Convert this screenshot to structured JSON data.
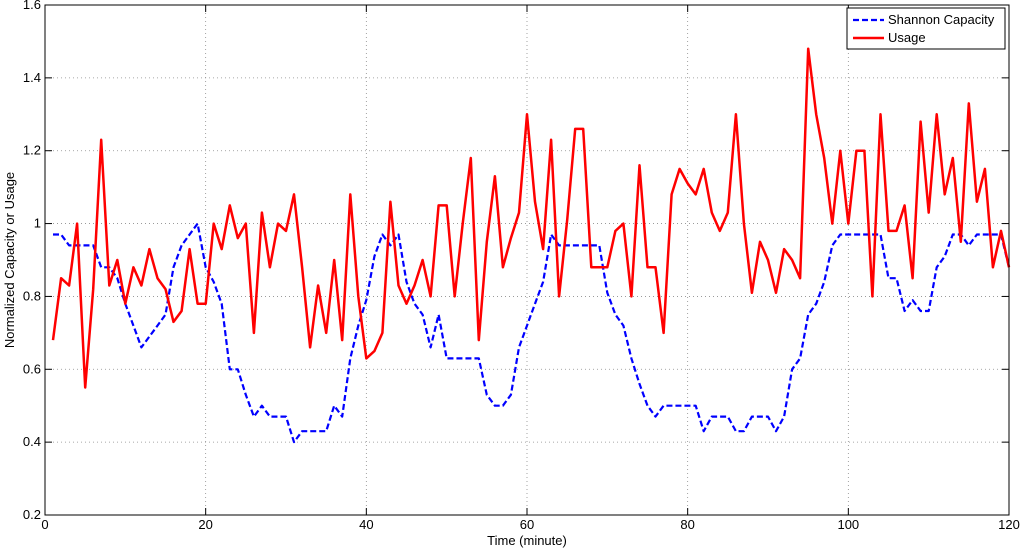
{
  "chart_data": {
    "type": "line",
    "title": "",
    "xlabel": "Time (minute)",
    "ylabel": "Normalized Capacity or Usage",
    "xlim": [
      0,
      120
    ],
    "ylim": [
      0.2,
      1.6
    ],
    "xticks": [
      0,
      20,
      40,
      60,
      80,
      100,
      120
    ],
    "yticks": [
      0.2,
      0.4,
      0.6,
      0.8,
      1,
      1.2,
      1.4,
      1.6
    ],
    "xtick_labels": [
      "0",
      "20",
      "40",
      "60",
      "80",
      "100",
      "120"
    ],
    "ytick_labels": [
      "0.2",
      "0.4",
      "0.6",
      "0.8",
      "1",
      "1.2",
      "1.4",
      "1.6"
    ],
    "grid": true,
    "legend_position": "top-right",
    "series": [
      {
        "name": "Shannon Capacity",
        "color": "#0000ff",
        "style": "dashed",
        "x": [
          1,
          2,
          3,
          4,
          5,
          6,
          7,
          8,
          9,
          10,
          11,
          12,
          13,
          14,
          15,
          16,
          17,
          18,
          19,
          20,
          21,
          22,
          23,
          24,
          25,
          26,
          27,
          28,
          29,
          30,
          31,
          32,
          33,
          34,
          35,
          36,
          37,
          38,
          39,
          40,
          41,
          42,
          43,
          44,
          45,
          46,
          47,
          48,
          49,
          50,
          51,
          52,
          53,
          54,
          55,
          56,
          57,
          58,
          59,
          60,
          61,
          62,
          63,
          64,
          65,
          66,
          67,
          68,
          69,
          70,
          71,
          72,
          73,
          74,
          75,
          76,
          77,
          78,
          79,
          80,
          81,
          82,
          83,
          84,
          85,
          86,
          87,
          88,
          89,
          90,
          91,
          92,
          93,
          94,
          95,
          96,
          97,
          98,
          99,
          100,
          101,
          102,
          103,
          104,
          105,
          106,
          107,
          108,
          109,
          110,
          111,
          112,
          113,
          114,
          115,
          116,
          117,
          118,
          119,
          120
        ],
        "y": [
          0.97,
          0.97,
          0.94,
          0.94,
          0.94,
          0.94,
          0.88,
          0.88,
          0.85,
          0.78,
          0.72,
          0.66,
          0.69,
          0.72,
          0.75,
          0.88,
          0.94,
          0.97,
          1.0,
          0.88,
          0.84,
          0.78,
          0.6,
          0.6,
          0.53,
          0.47,
          0.5,
          0.47,
          0.47,
          0.47,
          0.4,
          0.43,
          0.43,
          0.43,
          0.43,
          0.5,
          0.47,
          0.63,
          0.72,
          0.79,
          0.91,
          0.97,
          0.94,
          0.97,
          0.84,
          0.78,
          0.75,
          0.66,
          0.75,
          0.63,
          0.63,
          0.63,
          0.63,
          0.63,
          0.53,
          0.5,
          0.5,
          0.53,
          0.66,
          0.72,
          0.78,
          0.84,
          0.97,
          0.94,
          0.94,
          0.94,
          0.94,
          0.94,
          0.94,
          0.81,
          0.75,
          0.72,
          0.63,
          0.56,
          0.5,
          0.47,
          0.5,
          0.5,
          0.5,
          0.5,
          0.5,
          0.43,
          0.47,
          0.47,
          0.47,
          0.43,
          0.43,
          0.47,
          0.47,
          0.47,
          0.43,
          0.47,
          0.6,
          0.63,
          0.75,
          0.78,
          0.84,
          0.94,
          0.97,
          0.97,
          0.97,
          0.97,
          0.97,
          0.97,
          0.85,
          0.85,
          0.76,
          0.79,
          0.76,
          0.76,
          0.88,
          0.91,
          0.97,
          0.97,
          0.94,
          0.97,
          0.97,
          0.97,
          0.97,
          0.88
        ]
      },
      {
        "name": "Usage",
        "color": "#ff0000",
        "style": "solid",
        "x": [
          1,
          2,
          3,
          4,
          5,
          6,
          7,
          8,
          9,
          10,
          11,
          12,
          13,
          14,
          15,
          16,
          17,
          18,
          19,
          20,
          21,
          22,
          23,
          24,
          25,
          26,
          27,
          28,
          29,
          30,
          31,
          32,
          33,
          34,
          35,
          36,
          37,
          38,
          39,
          40,
          41,
          42,
          43,
          44,
          45,
          46,
          47,
          48,
          49,
          50,
          51,
          52,
          53,
          54,
          55,
          56,
          57,
          58,
          59,
          60,
          61,
          62,
          63,
          64,
          65,
          66,
          67,
          68,
          69,
          70,
          71,
          72,
          73,
          74,
          75,
          76,
          77,
          78,
          79,
          80,
          81,
          82,
          83,
          84,
          85,
          86,
          87,
          88,
          89,
          90,
          91,
          92,
          93,
          94,
          95,
          96,
          97,
          98,
          99,
          100,
          101,
          102,
          103,
          104,
          105,
          106,
          107,
          108,
          109,
          110,
          111,
          112,
          113,
          114,
          115,
          116,
          117,
          118,
          119,
          120
        ],
        "y": [
          0.68,
          0.85,
          0.83,
          1.0,
          0.55,
          0.82,
          1.23,
          0.83,
          0.9,
          0.78,
          0.88,
          0.83,
          0.93,
          0.85,
          0.82,
          0.73,
          0.76,
          0.93,
          0.78,
          0.78,
          1.0,
          0.93,
          1.05,
          0.96,
          1.0,
          0.7,
          1.03,
          0.88,
          1.0,
          0.98,
          1.08,
          0.88,
          0.66,
          0.83,
          0.7,
          0.9,
          0.68,
          1.08,
          0.8,
          0.63,
          0.65,
          0.7,
          1.06,
          0.83,
          0.78,
          0.83,
          0.9,
          0.8,
          1.05,
          1.05,
          0.8,
          1.0,
          1.18,
          0.68,
          0.95,
          1.13,
          0.88,
          0.96,
          1.03,
          1.3,
          1.06,
          0.93,
          1.23,
          0.8,
          1.01,
          1.26,
          1.26,
          0.88,
          0.88,
          0.88,
          0.98,
          1.0,
          0.8,
          1.16,
          0.88,
          0.88,
          0.7,
          1.08,
          1.15,
          1.11,
          1.08,
          1.15,
          1.03,
          0.98,
          1.03,
          1.3,
          1.0,
          0.81,
          0.95,
          0.9,
          0.81,
          0.93,
          0.9,
          0.85,
          1.48,
          1.3,
          1.18,
          1.0,
          1.2,
          1.0,
          1.2,
          1.2,
          0.8,
          1.3,
          0.98,
          0.98,
          1.05,
          0.85,
          1.28,
          1.03,
          1.3,
          1.08,
          1.18,
          0.95,
          1.33,
          1.06,
          1.15,
          0.88,
          0.98,
          0.88
        ]
      }
    ]
  }
}
